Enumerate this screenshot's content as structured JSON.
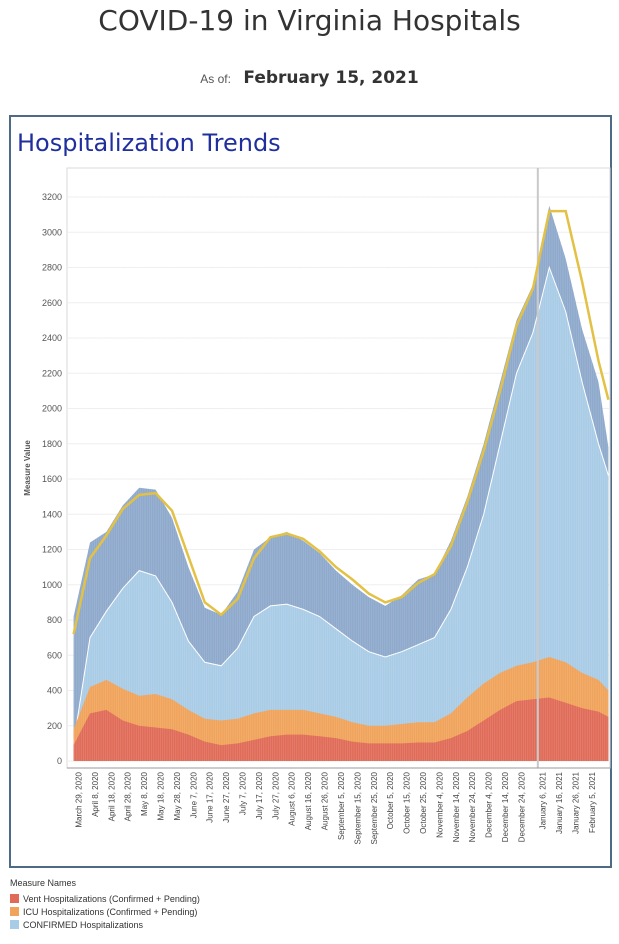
{
  "page": {
    "title": "COVID-19 in Virginia Hospitals",
    "as_of_label": "As of:",
    "as_of_date": "February 15, 2021"
  },
  "panel": {
    "title": "Hospitalization Trends"
  },
  "legend": {
    "title": "Measure Names",
    "items": [
      {
        "label": "Vent Hospitalizations (Confirmed + Pending)",
        "color": "#e06b58"
      },
      {
        "label": "ICU Hospitalizations (Confirmed + Pending)",
        "color": "#f0a35a"
      },
      {
        "label": "CONFIRMED Hospitalizations",
        "color": "#a8cbe6"
      }
    ]
  },
  "colors": {
    "total_band": "#8ea9cc",
    "confirmed": "#a8cbe6",
    "icu": "#f0a35a",
    "vent": "#e06b58",
    "moving_average": "#e3c145",
    "white_line": "#ffffff"
  },
  "chart_data": {
    "type": "area",
    "ylabel": "Measure Value",
    "ylim": [
      0,
      3200
    ],
    "yticks": [
      0,
      200,
      400,
      600,
      800,
      1000,
      1200,
      1400,
      1600,
      1800,
      2000,
      2200,
      2400,
      2600,
      2800,
      3000,
      3200
    ],
    "grid": true,
    "x_tick_labels": [
      "March 29, 2020",
      "April 8, 2020",
      "April 18, 2020",
      "April 28, 2020",
      "May 8, 2020",
      "May 18, 2020",
      "May 28, 2020",
      "June 7, 2020",
      "June 17, 2020",
      "June 27, 2020",
      "July 7, 2020",
      "July 17, 2020",
      "July 27, 2020",
      "August 6, 2020",
      "August 16, 2020",
      "August 26, 2020",
      "September 5, 2020",
      "September 15, 2020",
      "September 25, 2020",
      "October 5, 2020",
      "October 15, 2020",
      "October 25, 2020",
      "November 4, 2020",
      "November 14, 2020",
      "November 24, 2020",
      "December 4, 2020",
      "December 14, 2020",
      "December 24, 2020",
      "January 6, 2021",
      "January 16, 2021",
      "January 26, 2021",
      "February 5, 2021"
    ],
    "reference_line_date": "January 3, 2021",
    "x": [
      "2020-03-26",
      "2020-04-05",
      "2020-04-15",
      "2020-04-25",
      "2020-05-05",
      "2020-05-15",
      "2020-05-25",
      "2020-06-04",
      "2020-06-14",
      "2020-06-24",
      "2020-07-04",
      "2020-07-14",
      "2020-07-24",
      "2020-08-03",
      "2020-08-13",
      "2020-08-23",
      "2020-09-02",
      "2020-09-12",
      "2020-09-22",
      "2020-10-02",
      "2020-10-12",
      "2020-10-22",
      "2020-11-01",
      "2020-11-11",
      "2020-11-21",
      "2020-12-01",
      "2020-12-11",
      "2020-12-21",
      "2020-12-31",
      "2021-01-10",
      "2021-01-20",
      "2021-01-30",
      "2021-02-09",
      "2021-02-15"
    ],
    "series": [
      {
        "name": "Total Hospitalizations",
        "values": [
          820,
          1240,
          1300,
          1450,
          1550,
          1540,
          1380,
          1100,
          870,
          830,
          960,
          1200,
          1270,
          1300,
          1250,
          1180,
          1080,
          1000,
          930,
          880,
          940,
          1030,
          1060,
          1250,
          1500,
          1800,
          2150,
          2500,
          2700,
          3150,
          2850,
          2450,
          2150,
          1780
        ]
      },
      {
        "name": "CONFIRMED Hospitalizations",
        "values": [
          100,
          700,
          850,
          980,
          1080,
          1050,
          900,
          680,
          560,
          540,
          640,
          820,
          880,
          890,
          860,
          820,
          750,
          680,
          620,
          590,
          620,
          660,
          700,
          860,
          1100,
          1400,
          1800,
          2200,
          2430,
          2800,
          2550,
          2150,
          1800,
          1620
        ]
      },
      {
        "name": "ICU Hospitalizations (Confirmed + Pending)",
        "values": [
          180,
          420,
          460,
          410,
          370,
          380,
          350,
          290,
          240,
          230,
          240,
          270,
          290,
          290,
          290,
          270,
          250,
          220,
          200,
          200,
          210,
          220,
          220,
          270,
          360,
          440,
          500,
          540,
          560,
          590,
          560,
          500,
          460,
          400
        ]
      },
      {
        "name": "Vent Hospitalizations (Confirmed + Pending)",
        "values": [
          90,
          270,
          290,
          230,
          200,
          190,
          180,
          150,
          110,
          90,
          100,
          120,
          140,
          150,
          150,
          140,
          130,
          110,
          100,
          100,
          100,
          105,
          105,
          130,
          170,
          230,
          290,
          340,
          350,
          360,
          330,
          300,
          280,
          250
        ]
      },
      {
        "name": "7-day Average",
        "values": [
          720,
          1150,
          1280,
          1430,
          1510,
          1520,
          1420,
          1160,
          900,
          830,
          920,
          1150,
          1270,
          1290,
          1260,
          1190,
          1100,
          1030,
          950,
          900,
          930,
          1010,
          1060,
          1220,
          1470,
          1760,
          2100,
          2470,
          2680,
          3120,
          3120,
          2720,
          2270,
          2050
        ]
      }
    ]
  }
}
